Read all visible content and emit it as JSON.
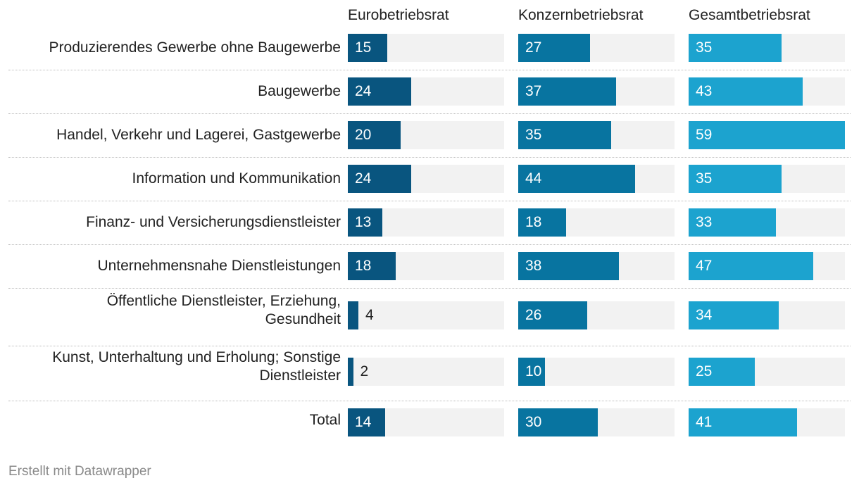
{
  "chart_data": {
    "type": "bar",
    "orientation": "horizontal",
    "layout": "small-multiples",
    "categories": [
      "Produzierendes Gewerbe ohne Baugewerbe",
      "Baugewerbe",
      "Handel, Verkehr und Lagerei, Gastgewerbe",
      "Information und Kommunikation",
      "Finanz- und Versicherungsdienstleister",
      "Unternehmensnahe Dienstleistungen",
      "Öffentliche Dienstleister, Erziehung,\nGesundheit",
      "Kunst, Unterhaltung und Erholung; Sonstige\nDienstleister",
      "Total"
    ],
    "series": [
      {
        "name": "Eurobetriebsrat",
        "color": "#09557f",
        "values": [
          15,
          24,
          20,
          24,
          13,
          18,
          4,
          2,
          14
        ]
      },
      {
        "name": "Konzernbetriebsrat",
        "color": "#0874a0",
        "values": [
          27,
          37,
          35,
          44,
          18,
          38,
          26,
          10,
          30
        ]
      },
      {
        "name": "Gesamtbetriebsrat",
        "color": "#1ca3cf",
        "values": [
          35,
          43,
          59,
          35,
          33,
          47,
          34,
          25,
          41
        ]
      }
    ],
    "xlim": [
      0,
      59
    ],
    "track_color": "#f2f2f2",
    "title": "",
    "xlabel": "",
    "ylabel": ""
  },
  "footer": {
    "credit": "Erstellt mit Datawrapper"
  }
}
